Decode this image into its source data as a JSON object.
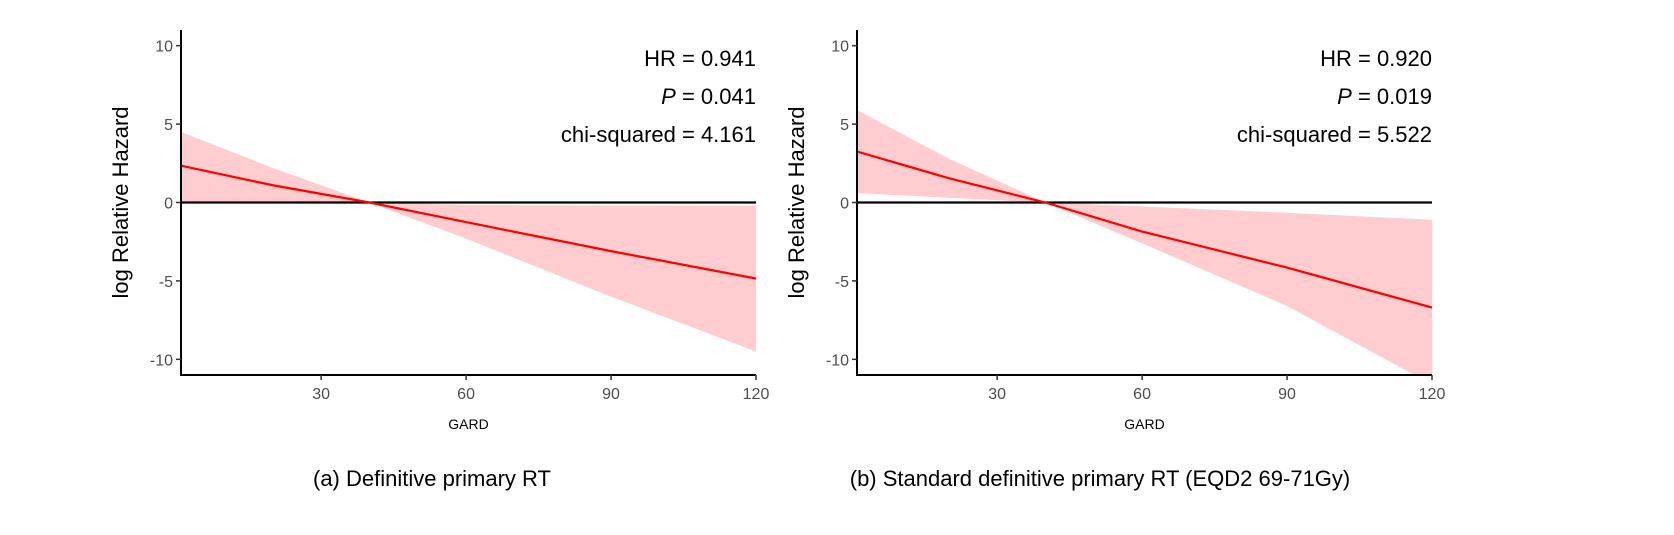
{
  "chart_data": [
    {
      "type": "line",
      "caption": "(a) Definitive primary RT",
      "xlabel": "GARD",
      "ylabel": "log Relative Hazard",
      "xlim": [
        1,
        120
      ],
      "ylim": [
        -11,
        11
      ],
      "xticks": [
        30,
        60,
        90,
        120
      ],
      "yticks": [
        10,
        5,
        0,
        -5,
        -10
      ],
      "reference_line": 0,
      "annotations": {
        "hr": "HR = 0.941",
        "p_label": "P",
        "p_value": " = 0.041",
        "chi": "chi-squared = 4.161"
      },
      "x": [
        1,
        20,
        40,
        60,
        90,
        120
      ],
      "estimate": [
        2.35,
        1.1,
        0,
        -1.25,
        -3.1,
        -4.85
      ],
      "ci_upper": [
        4.5,
        2.2,
        0,
        -0.15,
        -0.18,
        -0.2
      ],
      "ci_lower": [
        0.0,
        0.0,
        0,
        -2.3,
        -6.0,
        -9.5
      ],
      "line_color": "#ff0000",
      "band_color": "#ffcccf"
    },
    {
      "type": "line",
      "caption": "(b) Standard definitive primary RT (EQD2 69-71Gy)",
      "xlabel": "GARD",
      "ylabel": "log Relative Hazard",
      "xlim": [
        1,
        120
      ],
      "ylim": [
        -11,
        11
      ],
      "xticks": [
        30,
        60,
        90,
        120
      ],
      "yticks": [
        10,
        5,
        0,
        -5,
        -10
      ],
      "reference_line": 0,
      "annotations": {
        "hr": "HR = 0.920",
        "p_label": "P",
        "p_value": " = 0.019",
        "chi": "chi-squared = 5.522"
      },
      "x": [
        1,
        20,
        40,
        60,
        90,
        120
      ],
      "estimate": [
        3.25,
        1.55,
        0,
        -1.85,
        -4.15,
        -6.7
      ],
      "ci_upper": [
        5.9,
        2.8,
        0,
        -0.25,
        -0.65,
        -1.1
      ],
      "ci_lower": [
        0.6,
        0.3,
        0,
        -2.6,
        -6.6,
        -11.6
      ],
      "line_color": "#ff0000",
      "band_color": "#ffcccf"
    }
  ]
}
